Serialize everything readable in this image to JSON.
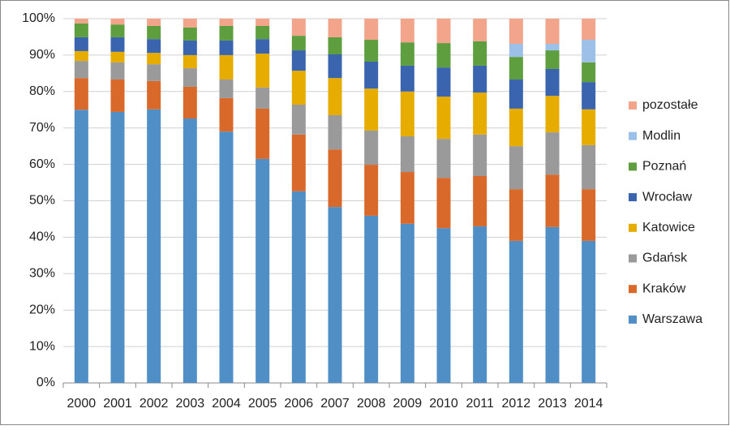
{
  "chart_data": {
    "type": "stacked_bar",
    "categories": [
      "2000",
      "2001",
      "2002",
      "2003",
      "2004",
      "2005",
      "2006",
      "2007",
      "2008",
      "2009",
      "2010",
      "2011",
      "2012",
      "2013",
      "2014"
    ],
    "series": [
      {
        "name": "Warszawa",
        "color": "#4f8fc6",
        "values": [
          75,
          74.4,
          75.1,
          72.6,
          69,
          61.5,
          52.6,
          48.3,
          45.9,
          43.7,
          42.5,
          43,
          39,
          42.8,
          39
        ]
      },
      {
        "name": "Kraków",
        "color": "#d9692b",
        "values": [
          8.7,
          8.9,
          7.8,
          8.7,
          9.2,
          13.8,
          15.6,
          15.8,
          14,
          14.2,
          13.8,
          13.8,
          14.2,
          14.4,
          14.2
        ]
      },
      {
        "name": "Gdańsk",
        "color": "#9a9a9a",
        "values": [
          4.7,
          4.7,
          4.6,
          5.1,
          5.1,
          5.8,
          8.2,
          9.4,
          9.4,
          9.8,
          10.7,
          11.4,
          11.8,
          11.6,
          12.1
        ]
      },
      {
        "name": "Katowice",
        "color": "#e6ac00",
        "values": [
          2.7,
          2.9,
          3.1,
          3.6,
          6.7,
          9.3,
          9.3,
          10.2,
          11.5,
          12.3,
          11.6,
          11.5,
          10.3,
          10,
          9.8
        ]
      },
      {
        "name": "Wrocław",
        "color": "#3a64ae",
        "values": [
          3.8,
          4,
          3.8,
          4,
          4,
          4,
          5.6,
          6.5,
          7.4,
          7.1,
          8,
          7.4,
          8,
          7.4,
          7.5
        ]
      },
      {
        "name": "Poznań",
        "color": "#5e9e3e",
        "values": [
          3.8,
          3.5,
          3.6,
          3.6,
          4,
          3.6,
          4,
          4.7,
          6,
          6.4,
          6.7,
          6.7,
          6.2,
          5.1,
          5.4
        ]
      },
      {
        "name": "Modlin",
        "color": "#9dc0e8",
        "values": [
          0,
          0,
          0,
          0,
          0,
          0,
          0,
          0,
          0,
          0,
          0,
          0,
          3.6,
          1.8,
          6.2
        ]
      },
      {
        "name": "pozostałe",
        "color": "#f2a58a",
        "values": [
          1.3,
          1.6,
          2,
          2.4,
          2,
          2,
          4.7,
          5.1,
          5.8,
          6.5,
          6.7,
          6.2,
          6.9,
          6.9,
          5.8
        ]
      }
    ],
    "ylim": [
      0,
      100
    ],
    "yticks": [
      {
        "value": 0,
        "label": "0%"
      },
      {
        "value": 10,
        "label": "10%"
      },
      {
        "value": 20,
        "label": "20%"
      },
      {
        "value": 30,
        "label": "30%"
      },
      {
        "value": 40,
        "label": "40%"
      },
      {
        "value": 50,
        "label": "50%"
      },
      {
        "value": 60,
        "label": "60%"
      },
      {
        "value": 70,
        "label": "70%"
      },
      {
        "value": 80,
        "label": "80%"
      },
      {
        "value": 90,
        "label": "90%"
      },
      {
        "value": 100,
        "label": "100%"
      }
    ],
    "grid": true,
    "legend": "right"
  }
}
